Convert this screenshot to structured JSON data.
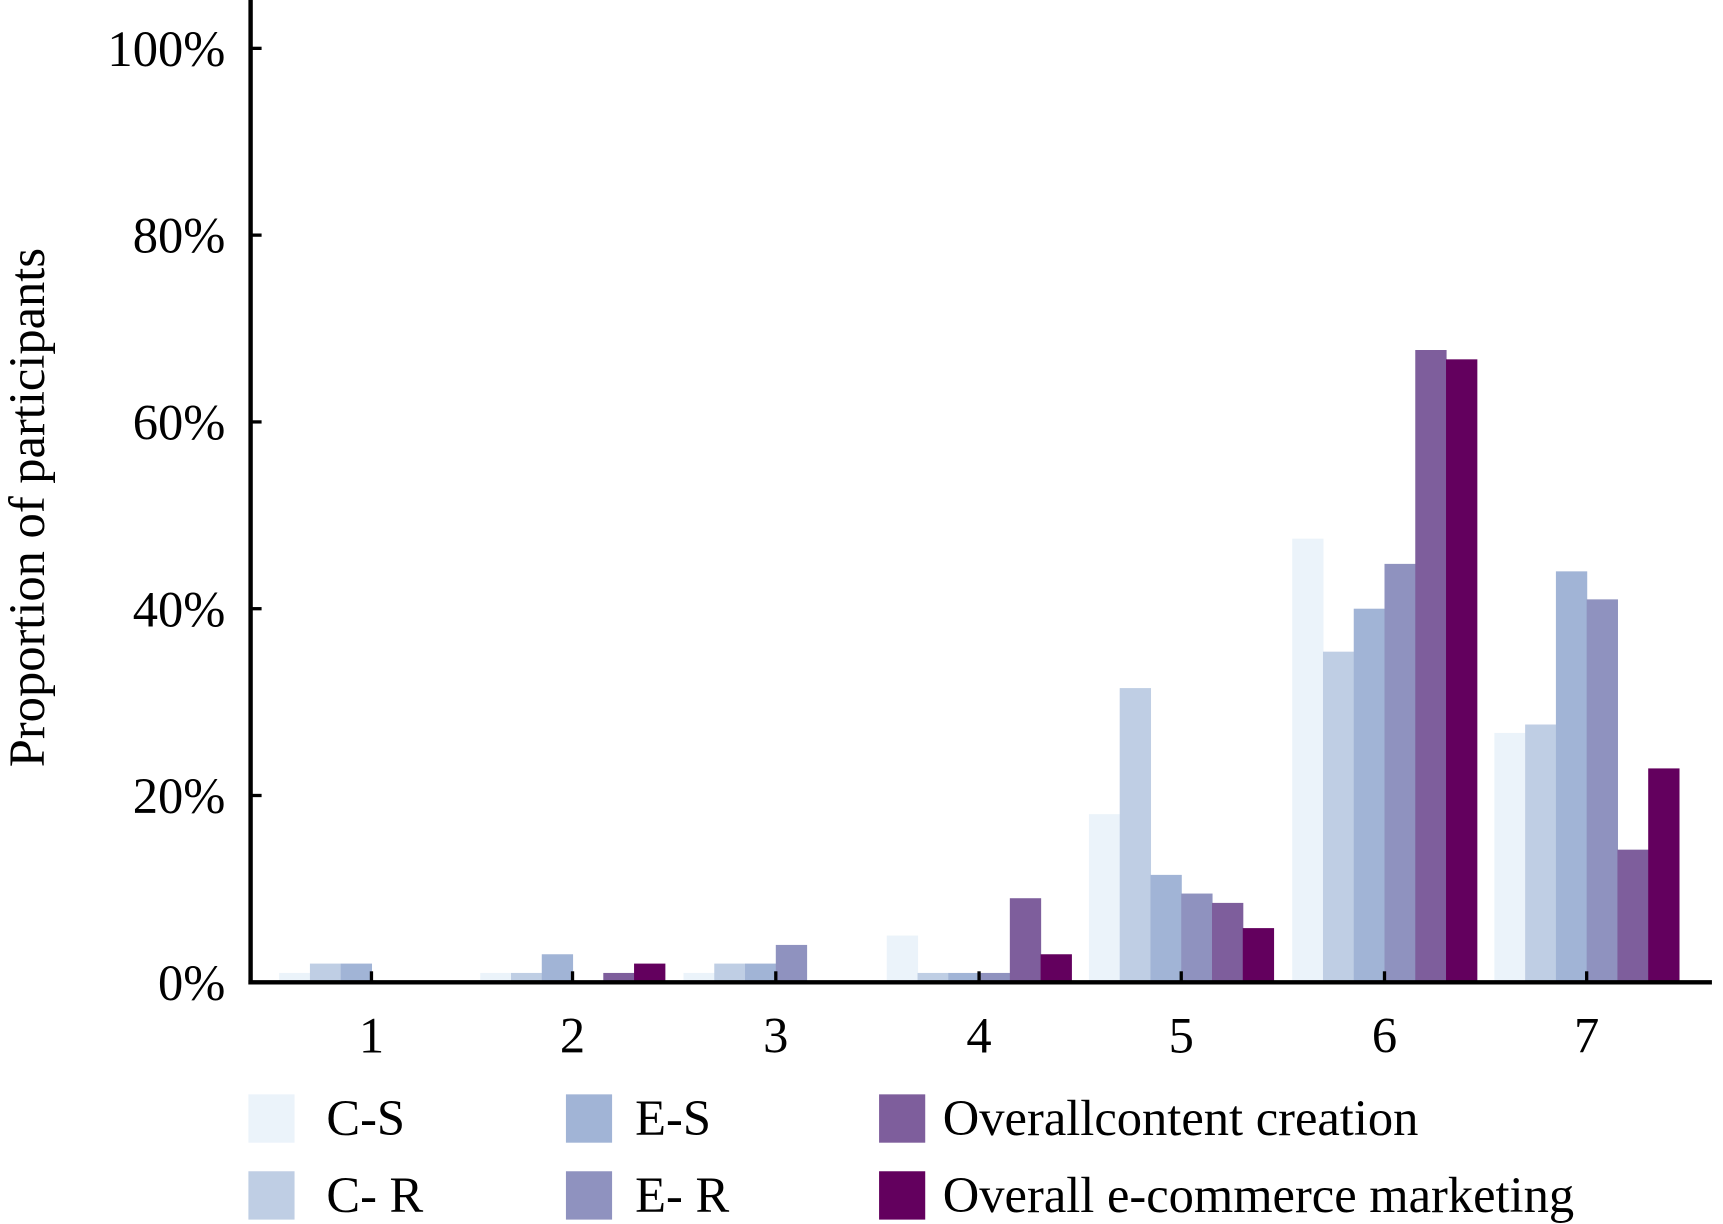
{
  "chart_data": {
    "type": "bar",
    "title": "",
    "xlabel": "",
    "ylabel": "Proportion of participants",
    "ylim": [
      0,
      100
    ],
    "yticks": [
      "0%",
      "20%",
      "40%",
      "60%",
      "80%",
      "100%"
    ],
    "ytick_values": [
      0,
      20,
      40,
      60,
      80,
      100
    ],
    "categories": [
      "1",
      "2",
      "3",
      "4",
      "5",
      "6",
      "7"
    ],
    "grid": false,
    "legend_position": "bottom",
    "series": [
      {
        "name": "C-S",
        "color": "#ebf3fa",
        "values": [
          1,
          1,
          1,
          5,
          18,
          47.5,
          26.7
        ]
      },
      {
        "name": "C- R",
        "color": "#bfcee4",
        "values": [
          2,
          1,
          2,
          1,
          31.5,
          35.4,
          27.6
        ]
      },
      {
        "name": "E-S",
        "color": "#a1b4d6",
        "values": [
          2,
          3,
          2,
          1,
          11.5,
          40,
          44
        ]
      },
      {
        "name": "E- R",
        "color": "#8f92bf",
        "values": [
          0,
          0,
          4,
          1,
          9.5,
          44.8,
          41
        ]
      },
      {
        "name": "Overallcontent creation",
        "color": "#7e5e9c",
        "values": [
          0,
          1,
          0,
          9,
          8.5,
          67.7,
          14.2
        ]
      },
      {
        "name": "Overall e-commerce marketing",
        "color": "#63005e",
        "values": [
          0,
          2,
          0,
          3,
          5.8,
          66.7,
          22.9
        ]
      }
    ]
  }
}
